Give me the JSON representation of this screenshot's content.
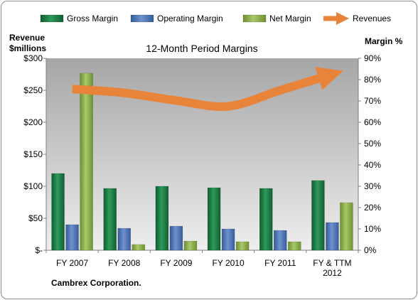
{
  "chart_data": {
    "type": "bar",
    "title": "12-Month Period Margins",
    "footer": "Cambrex Corporation.",
    "categories": [
      [
        "FY 2007"
      ],
      [
        "FY 2008"
      ],
      [
        "FY 2009"
      ],
      [
        "FY 2010"
      ],
      [
        "FY 2011"
      ],
      [
        "FY & TTM",
        "2012"
      ]
    ],
    "y_left": {
      "label_lines": [
        "Revenue",
        "$millions"
      ],
      "ticks": [
        "$-",
        "$50",
        "$100",
        "$150",
        "$200",
        "$250",
        "$300"
      ],
      "range": [
        0,
        300
      ]
    },
    "y_right": {
      "label": "Margin %",
      "ticks": [
        "0%",
        "10%",
        "20%",
        "30%",
        "40%",
        "50%",
        "60%",
        "70%",
        "80%",
        "90%"
      ],
      "range": [
        0,
        90
      ]
    },
    "series": [
      {
        "name": "Gross Margin",
        "axis": "right",
        "kind": "bar",
        "color": "#1d7a45",
        "values": [
          36,
          29,
          30,
          29.3,
          29,
          32.7
        ]
      },
      {
        "name": "Operating Margin",
        "axis": "right",
        "kind": "bar",
        "color": "#4f74b3",
        "values": [
          12,
          10.3,
          11.3,
          10,
          9.3,
          13
        ]
      },
      {
        "name": "Net Margin",
        "axis": "right",
        "kind": "bar",
        "color": "#8db04a",
        "values": [
          83,
          2.7,
          4.3,
          4,
          4,
          22.3
        ]
      },
      {
        "name": "Revenues",
        "axis": "left",
        "kind": "line",
        "color": "#e8843a",
        "values": [
          252,
          246,
          234,
          225,
          250,
          275
        ]
      }
    ],
    "grid": false,
    "legend_position": "top"
  }
}
